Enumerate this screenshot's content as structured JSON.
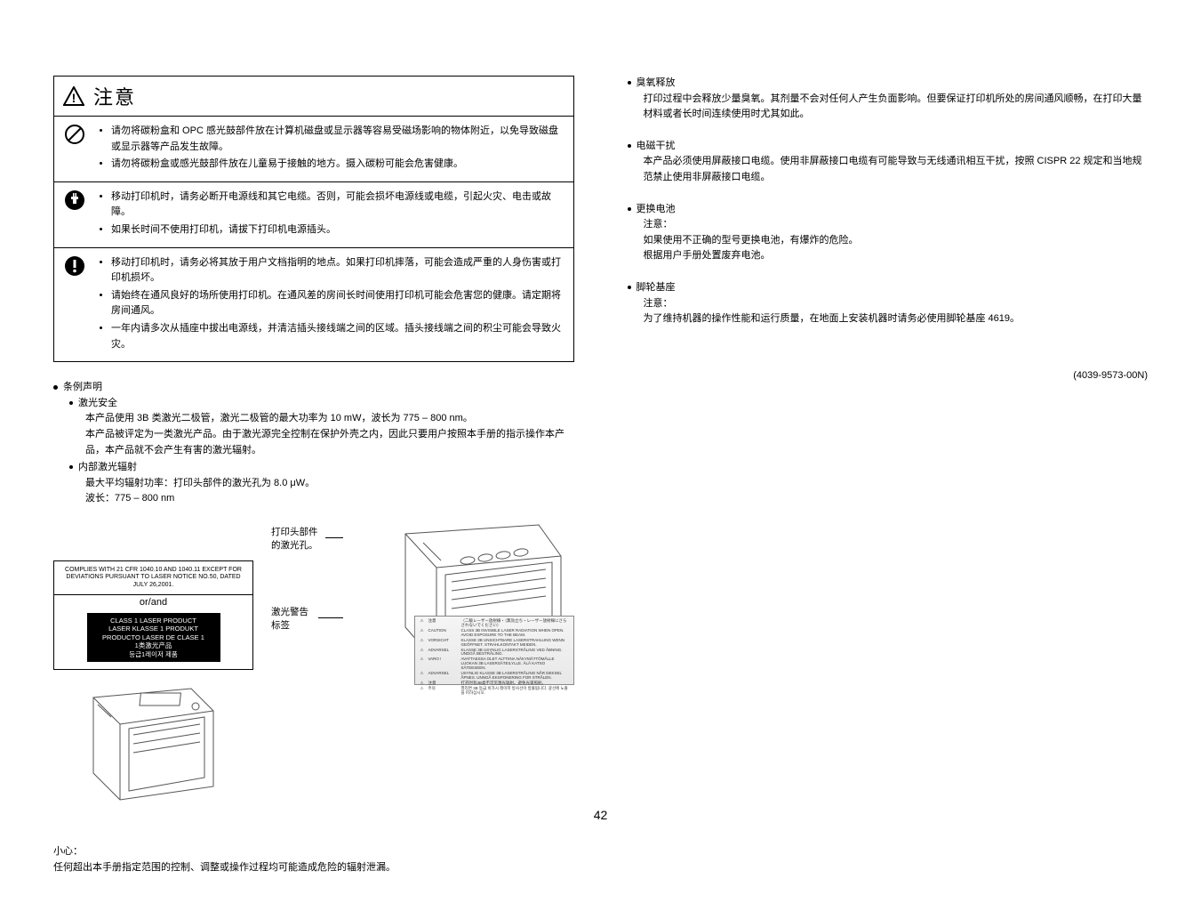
{
  "caution_title": "注意",
  "caution_rows": [
    {
      "items": [
        "请勿将碳粉盒和 OPC 感光鼓部件放在计算机磁盘或显示器等容易受磁场影响的物体附近，以免导致磁盘或显示器等产品发生故障。",
        "请勿将碳粉盒或感光鼓部件放在儿童易于接触的地方。摄入碳粉可能会危害健康。"
      ]
    },
    {
      "items": [
        "移动打印机时，请务必断开电源线和其它电缆。否则，可能会损坏电源线或电缆，引起火灾、电击或故障。",
        "如果长时间不使用打印机，请拔下打印机电源插头。"
      ]
    },
    {
      "items": [
        "移动打印机时，请务必将其放于用户文档指明的地点。如果打印机摔落，可能会造成严重的人身伤害或打印机损坏。",
        "请始终在通风良好的场所使用打印机。在通风差的房间长时间使用打印机可能会危害您的健康。请定期将房间通风。",
        "一年内请多次从插座中拔出电源线，并清洁插头接线端之间的区域。插头接线端之间的积尘可能会导致火灾。"
      ]
    }
  ],
  "cond_heading": "条例声明",
  "laser_safety_heading": "激光安全",
  "laser_safety_lines": [
    "本产品使用 3B 类激光二极管，激光二极管的最大功率为 10 mW，波长为 775 – 800 nm。",
    "本产品被评定为一类激光产品。由于激光源完全控制在保护外壳之内，因此只要用户按照本手册的指示操作本产品，本产品就不会产生有害的激光辐射。"
  ],
  "internal_heading": "内部激光辐射",
  "internal_lines": [
    "最大平均辐射功率：打印头部件的激光孔为 8.0 μW。",
    "波长：775 – 800 nm"
  ],
  "compliance": {
    "top": "COMPLIES WITH 21 CFR 1040.10 AND 1040.11 EXCEPT FOR DEVIATIONS PURSUANT TO LASER NOTICE NO.50, DATED JULY 26,2001.",
    "orand": "or/and",
    "black_lines": "CLASS 1 LASER PRODUCT\nLASER KLASSE 1 PRODUKT\nPRODUCTO LASER DE CLASE 1\n1类激光产品\n등급1레이저 제품"
  },
  "callout_laser_hole": "打印头部件的激光孔。",
  "callout_warn_label": "激光警告标签",
  "small_caution_label": "小心：",
  "small_caution_text": "任何超出本手册指定范围的控制、调整或操作过程均可能造成危险的辐射泄漏。",
  "ozone": {
    "heading": "臭氧释放",
    "text": "打印过程中会释放少量臭氧。其剂量不会对任何人产生负面影响。但要保证打印机所处的房间通风顺畅，在打印大量材料或者长时间连续使用时尤其如此。"
  },
  "emi": {
    "heading": "电磁干扰",
    "text": "本产品必须使用屏蔽接口电缆。使用非屏蔽接口电缆有可能导致与无线通讯相互干扰，按照 CISPR 22 规定和当地规范禁止使用非屏蔽接口电缆。"
  },
  "battery": {
    "heading": "更换电池",
    "note": "注意：",
    "line1": "如果使用不正确的型号更换电池，有爆炸的危险。",
    "line2": "根据用户手册处置废弃电池。"
  },
  "caster": {
    "heading": "脚轮基座",
    "note": "注意：",
    "text": "为了维持机器的操作性能和运行质量，在地面上安装机器时请务必使用脚轮基座 4619。"
  },
  "doc_number": "(4039-9573-00N)",
  "page_number": "42",
  "warn_label_rows": [
    [
      "⚠",
      "注意",
      "（二級レーザー放射線・（無効立ち・レーザー放射線にさらされないでください）"
    ],
    [
      "⚠",
      "CAUTION",
      "CLASS 3B INVISIBLE LASER RADIATION WHEN OPEN. AVOID EXPOSURE TO THE BEAM."
    ],
    [
      "⚠",
      "VORSICHT",
      "KLASSE 3B UNSICHTBARE LASERSTRAHLUNG WENN GEÖFFNET. STRAHLKONTAKT MEIDEN."
    ],
    [
      "⚠",
      "ADVARSEL",
      "KLASSE 3B USYNLIG LASERSTRÅLING VED ÅBNING. UNDGÅ BESTRÅLING."
    ],
    [
      "⚠",
      "VARO !",
      "AVATTAESSA OLET ALTTIINA NÄKYMÄTTÖMÄLLE LUOKAN 3B LASERSÄTEILYLLE. ÄLÄ KATSO SÄTEESEEN."
    ],
    [
      "⚠",
      "ADVARSEL",
      "USYNLIG KLASSE 3B LASERSTRÅLING NÅR DEKSEL ÅPNES. UNNGÅ EKSPONERING FOR STRÅLEN."
    ],
    [
      "⚠",
      "注意",
      "打开时有3B类不可见激光辐射。避免光束照射。"
    ],
    [
      "⚠",
      "주의",
      "열리면 3B 등급 비가시 레이저 방사선이 방출됩니다. 광선에 노출을 피하십시오."
    ]
  ]
}
